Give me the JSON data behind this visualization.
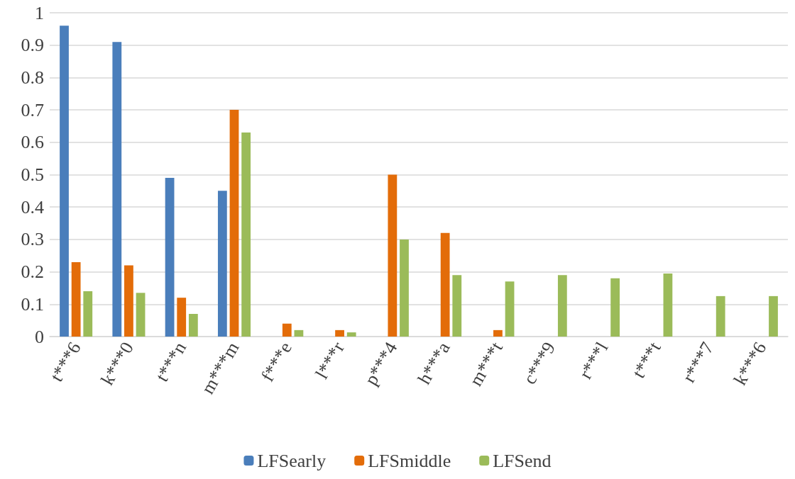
{
  "chart_data": {
    "type": "bar",
    "categories": [
      "t***6",
      "k***0",
      "t***n",
      "m***m",
      "f***e",
      "l***r",
      "p***4",
      "h***a",
      "m***t",
      "c***9",
      "r***l",
      "t***t",
      "r***7",
      "k***6"
    ],
    "series": [
      {
        "name": "LFSearly",
        "color": "#4a7ebb",
        "values": [
          0.96,
          0.91,
          0.49,
          0.45,
          0,
          0,
          0,
          0,
          0,
          0,
          0,
          0,
          0,
          0
        ]
      },
      {
        "name": "LFSmiddle",
        "color": "#e36c09",
        "values": [
          0.23,
          0.22,
          0.12,
          0.7,
          0.04,
          0.02,
          0.5,
          0.32,
          0.02,
          0,
          0,
          0,
          0,
          0
        ]
      },
      {
        "name": "LFSend",
        "color": "#9bbb59",
        "values": [
          0.14,
          0.135,
          0.07,
          0.63,
          0.02,
          0.013,
          0.3,
          0.19,
          0.17,
          0.19,
          0.18,
          0.195,
          0.125,
          0.125
        ]
      }
    ],
    "ylim": [
      0,
      1
    ],
    "yticks": [
      0,
      0.1,
      0.2,
      0.3,
      0.4,
      0.5,
      0.6,
      0.7,
      0.8,
      0.9,
      1
    ],
    "grid": "y",
    "legend": "bottom"
  }
}
